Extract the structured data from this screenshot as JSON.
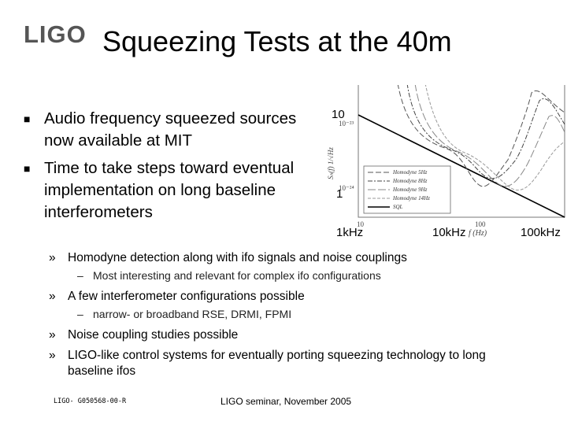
{
  "header": {
    "logo": "LIGO",
    "title": "Squeezing Tests at the 40m"
  },
  "bullets": [
    "Audio frequency squeezed sources now available at MIT",
    "Time to take steps toward eventual implementation on long baseline interferometers"
  ],
  "plot": {
    "y_labels": [
      "10",
      "1"
    ],
    "x_labels": [
      "1kHz",
      "10kHz",
      "100kHz"
    ],
    "inner_y_ticks": [
      "10⁻²³",
      "10⁻²⁴"
    ],
    "inner_x_ticks": [
      "10",
      "100"
    ],
    "x_axis": "f (Hz)",
    "y_axis": "Sₕ(f) 1/√Hz",
    "legend": [
      "Homodyne 5Hz",
      "Homodyne 8Hz",
      "Homodyne 9Hz",
      "Homodyne 14Hz",
      "SQL"
    ]
  },
  "items": [
    {
      "text": "Homodyne detection along with ifo signals and noise couplings",
      "details": [
        "Most interesting and relevant for complex ifo configurations"
      ]
    },
    {
      "text": "A few interferometer configurations possible",
      "details": [
        "narrow- or broadband RSE, DRMI, FPMI"
      ]
    },
    {
      "text": "Noise coupling studies possible",
      "details": []
    },
    {
      "text": "LIGO-like control systems for eventually porting squeezing technology to long baseline ifos",
      "details": []
    }
  ],
  "footer": {
    "doc_id": "LIGO- G050568-00-R",
    "center": "LIGO seminar, November 2005"
  }
}
